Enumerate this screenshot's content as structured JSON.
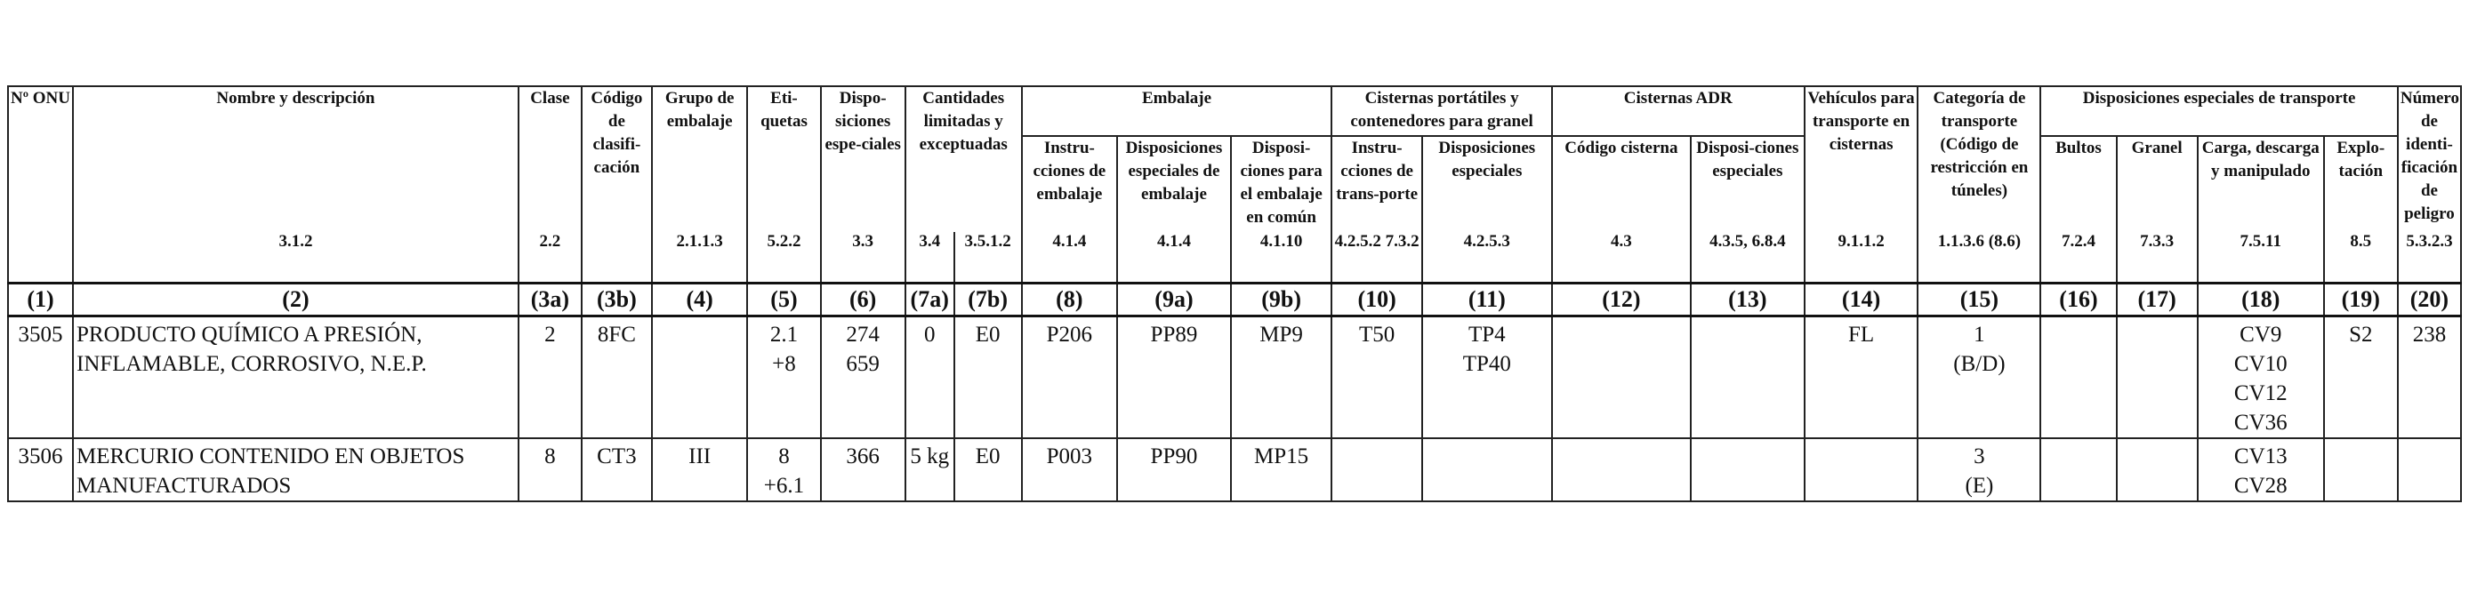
{
  "headers": {
    "un_no": "Nº ONU",
    "name": "Nombre y descripción",
    "class": "Clase",
    "class_code": "Código de clasifi-cación",
    "packing_group": "Grupo de embalaje",
    "labels": "Eti-quetas",
    "special_provisions": "Dispo-siciones espe-ciales",
    "limited_quantities": "Cantidades limitadas y exceptuadas",
    "packaging": "Embalaje",
    "packing_instructions": "Instru-cciones de embalaje",
    "special_packing_provisions": "Disposiciones especiales de embalaje",
    "mixed_packing_provisions": "Disposi-ciones para el embalaje en común",
    "portable_tanks": "Cisternas portátiles y contenedores para granel",
    "tank_instructions": "Instru-cciones de trans-porte",
    "tank_special_provisions": "Disposiciones especiales",
    "adr_tanks": "Cisternas ADR",
    "tank_code": "Código cisterna",
    "adr_special_provisions": "Disposi-ciones especiales",
    "vehicle_tank_carriage": "Vehículos para transporte en cisternas",
    "transport_category": "Categoría de transporte (Código de restricción en túneles)",
    "special_transport_provisions": "Disposiciones especiales de transporte",
    "packages": "Bultos",
    "bulk": "Granel",
    "loading": "Carga, descarga y manipulado",
    "operation": "Explo-tación",
    "hazard_id": "Número de identi-ficación de peligro"
  },
  "references": {
    "name": "3.1.2",
    "class": "2.2",
    "packing_group": "2.1.1.3",
    "labels": "5.2.2",
    "special_provisions": "3.3",
    "lq": "3.4",
    "eq": "3.5.1.2",
    "packing_instructions": "4.1.4",
    "special_packing": "4.1.4",
    "mixed_packing": "4.1.10",
    "portable_tank_instr": "4.2.5.2 7.3.2",
    "portable_tank_sp": "4.2.5.3",
    "tank_code": "4.3",
    "tank_sp": "4.3.5, 6.8.4",
    "vehicle": "9.1.1.2",
    "category": "1.1.3.6 (8.6)",
    "packages": "7.2.4",
    "bulk": "7.3.3",
    "loading": "7.5.11",
    "operation": "8.5",
    "hazard_id": "5.3.2.3"
  },
  "column_numbers": [
    "(1)",
    "(2)",
    "(3a)",
    "(3b)",
    "(4)",
    "(5)",
    "(6)",
    "(7a)",
    "(7b)",
    "(8)",
    "(9a)",
    "(9b)",
    "(10)",
    "(11)",
    "(12)",
    "(13)",
    "(14)",
    "(15)",
    "(16)",
    "(17)",
    "(18)",
    "(19)",
    "(20)"
  ],
  "rows": [
    {
      "un_no": "3505",
      "name": "PRODUCTO QUÍMICO A PRESIÓN, INFLAMABLE, CORROSIVO, N.E.P.",
      "class": "2",
      "class_code": "8FC",
      "packing_group": "",
      "labels": [
        "2.1",
        "+8"
      ],
      "special_provisions": [
        "274",
        "659"
      ],
      "lq": "0",
      "eq": "E0",
      "packing_instructions": "P206",
      "special_packing": "PP89",
      "mixed_packing": "MP9",
      "portable_tank_instr": "T50",
      "portable_tank_sp": [
        "TP4",
        "TP40"
      ],
      "tank_code": "",
      "tank_sp": "",
      "vehicle": "FL",
      "category": [
        "1",
        "(B/D)"
      ],
      "packages": "",
      "bulk": "",
      "loading": [
        "CV9",
        "CV10",
        "CV12",
        "CV36"
      ],
      "operation": "S2",
      "hazard_id": "238"
    },
    {
      "un_no": "3506",
      "name": "MERCURIO CONTENIDO EN OBJETOS MANUFACTURADOS",
      "class": "8",
      "class_code": "CT3",
      "packing_group": "III",
      "labels": [
        "8",
        "+6.1"
      ],
      "special_provisions": [
        "366"
      ],
      "lq": "5 kg",
      "eq": "E0",
      "packing_instructions": "P003",
      "special_packing": "PP90",
      "mixed_packing": "MP15",
      "portable_tank_instr": "",
      "portable_tank_sp": [],
      "tank_code": "",
      "tank_sp": "",
      "vehicle": "",
      "category": [
        "3",
        "(E)"
      ],
      "packages": "",
      "bulk": "",
      "loading": [
        "CV13",
        "CV28"
      ],
      "operation": "",
      "hazard_id": ""
    }
  ]
}
